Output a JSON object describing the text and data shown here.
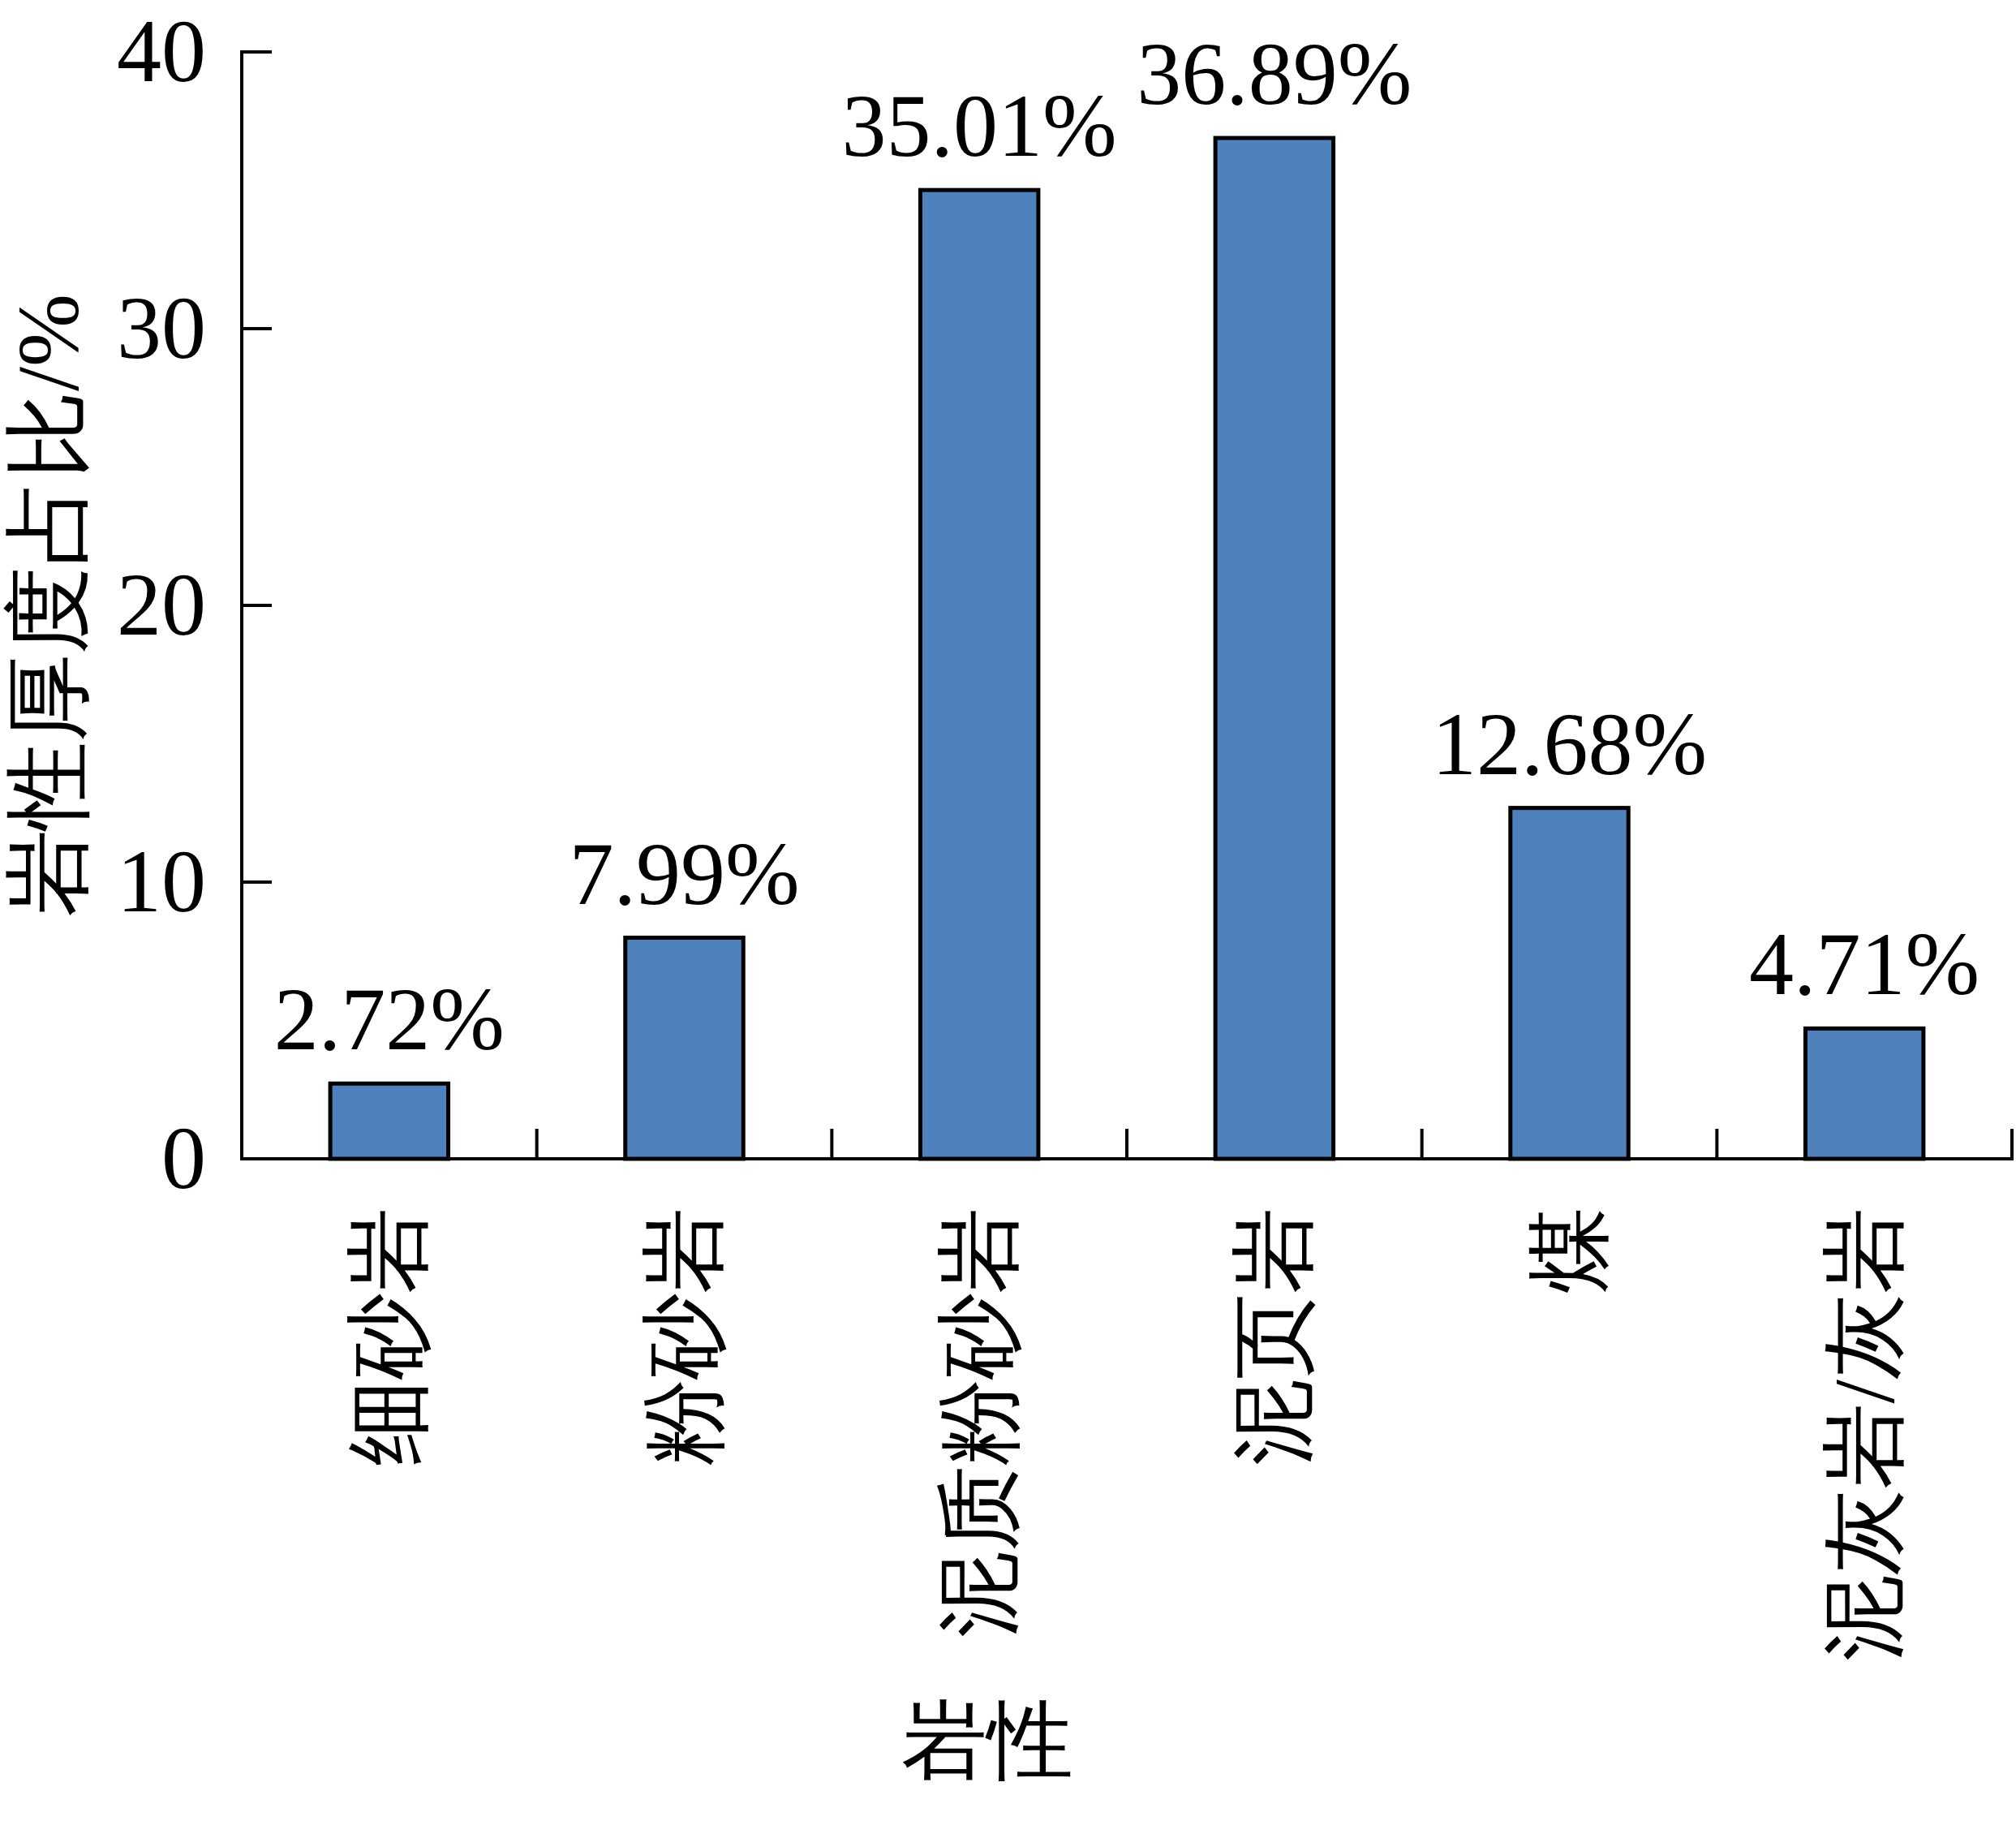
{
  "chart_data": {
    "type": "bar",
    "xlabel": "岩性",
    "ylabel": "岩性厚度占比/%",
    "categories": [
      "细砂岩",
      "粉砂岩",
      "泥质粉砂岩",
      "泥页岩",
      "煤",
      "泥灰岩/灰岩"
    ],
    "values": [
      2.72,
      7.99,
      35.01,
      36.89,
      12.68,
      4.71
    ],
    "value_labels": [
      "2.72%",
      "7.99%",
      "35.01%",
      "36.89%",
      "12.68%",
      "4.71%"
    ],
    "color": "#4f81bd",
    "ylim": [
      0,
      40
    ],
    "yticks": [
      0,
      10,
      20,
      30,
      40
    ]
  }
}
